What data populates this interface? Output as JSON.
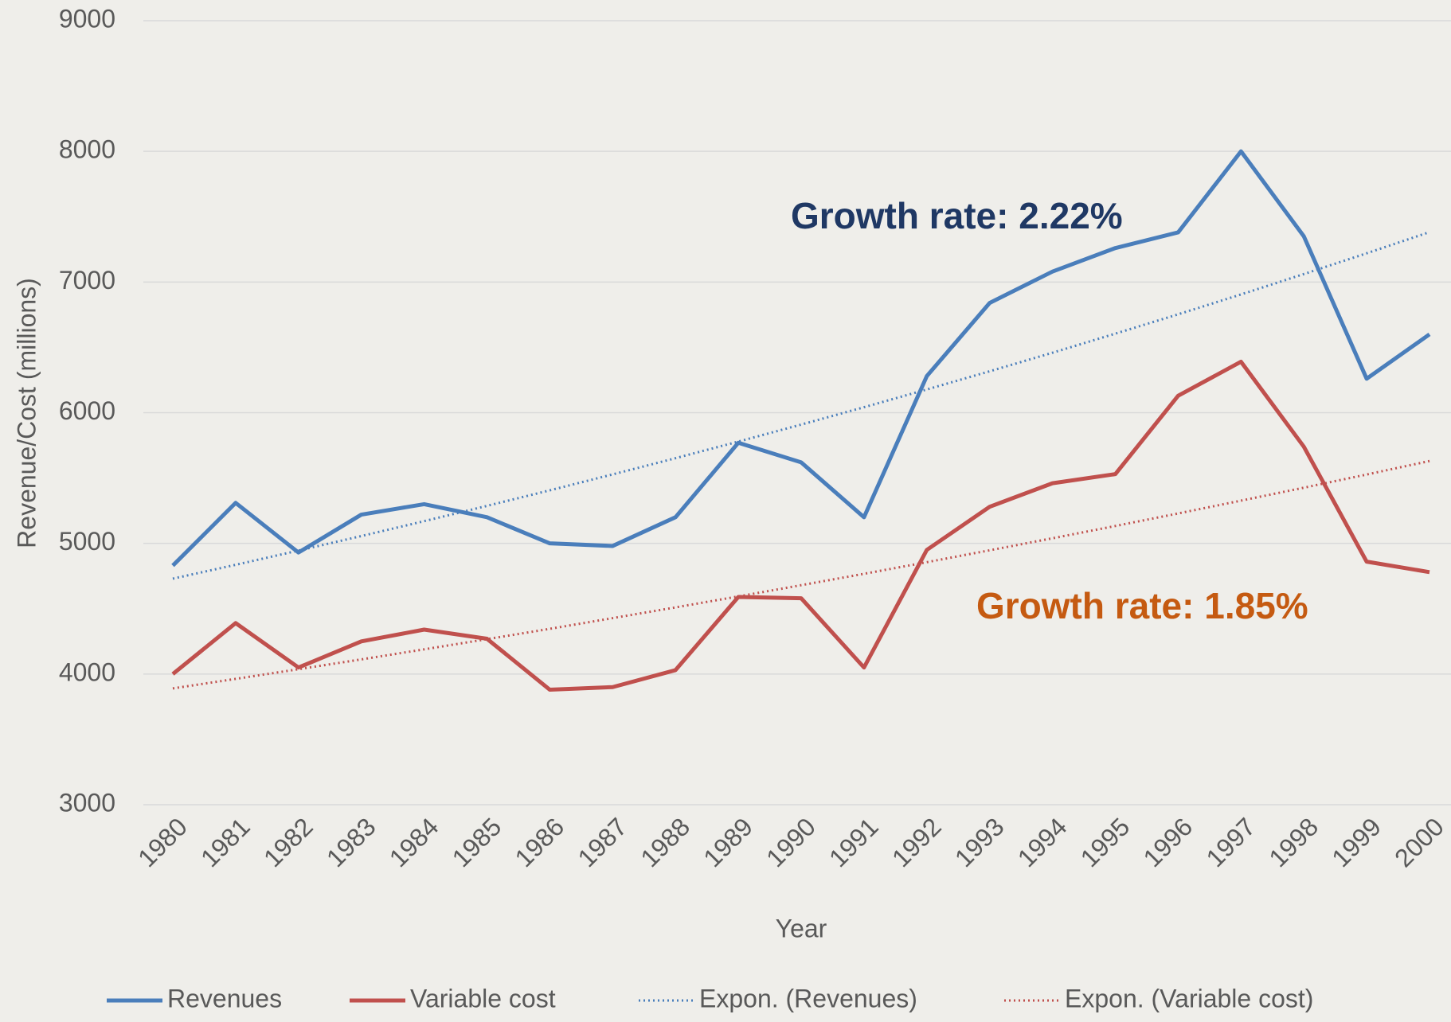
{
  "chart_data": {
    "type": "line",
    "x_label": "Year",
    "y_label": "Revenue/Cost (millions)",
    "categories": [
      "1980",
      "1981",
      "1982",
      "1983",
      "1984",
      "1985",
      "1986",
      "1987",
      "1988",
      "1989",
      "1990",
      "1991",
      "1992",
      "1993",
      "1994",
      "1995",
      "1996",
      "1997",
      "1998",
      "1999",
      "2000"
    ],
    "series": [
      {
        "name": "Revenues",
        "color": "#4a7ebb",
        "line_style": "solid",
        "values": [
          4830,
          5310,
          4930,
          5220,
          5300,
          5200,
          5000,
          4980,
          5200,
          5770,
          5620,
          5200,
          6280,
          6840,
          7080,
          7260,
          7380,
          8000,
          7350,
          6260,
          6600
        ]
      },
      {
        "name": "Variable cost",
        "color": "#c0504d",
        "line_style": "solid",
        "values": [
          4000,
          4390,
          4050,
          4250,
          4340,
          4270,
          3880,
          3900,
          4030,
          4590,
          4580,
          4050,
          4950,
          5280,
          5460,
          5530,
          6130,
          6390,
          5740,
          4860,
          4780
        ]
      },
      {
        "name": "Expon. (Revenues)",
        "color": "#4a7ebb",
        "line_style": "dotted",
        "values": [
          4730,
          4836,
          4945,
          5056,
          5170,
          5287,
          5406,
          5528,
          5652,
          5779,
          5909,
          6042,
          6178,
          6317,
          6459,
          6605,
          6753,
          6905,
          7061,
          7220,
          7382
        ]
      },
      {
        "name": "Expon. (Variable cost)",
        "color": "#c0504d",
        "line_style": "dotted",
        "values": [
          3890,
          3963,
          4037,
          4112,
          4189,
          4267,
          4346,
          4428,
          4510,
          4594,
          4680,
          4767,
          4856,
          4947,
          5039,
          5133,
          5229,
          5327,
          5426,
          5527,
          5630
        ]
      }
    ],
    "annotations": [
      {
        "text": "Growth rate: 2.22%",
        "color": "#1f3864"
      },
      {
        "text": "Growth rate: 1.85%",
        "color": "#c55a11"
      }
    ],
    "ylim": [
      3000,
      9000
    ],
    "yticks": [
      3000,
      4000,
      5000,
      6000,
      7000,
      8000,
      9000
    ],
    "grid": true,
    "legend": "bottom"
  }
}
